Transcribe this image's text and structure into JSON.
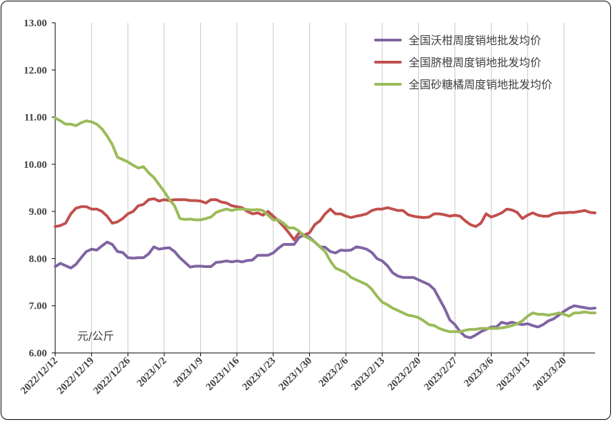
{
  "chart_data": {
    "type": "line",
    "unit_label": "元/公斤",
    "ylim": [
      6.0,
      13.0
    ],
    "y_ticks": [
      "6.00",
      "7.00",
      "8.00",
      "9.00",
      "10.00",
      "11.00",
      "12.00",
      "13.00"
    ],
    "x_ticks": [
      "2022/12/12",
      "2022/12/19",
      "2022/12/26",
      "2023/1/2",
      "2023/1/9",
      "2023/1/16",
      "2023/1/23",
      "2023/1/30",
      "2023/2/6",
      "2023/2/13",
      "2023/2/20",
      "2023/2/27",
      "2023/3/6",
      "2023/3/13",
      "2023/3/20"
    ],
    "x_start": "2022/12/12",
    "x_end": "2023/3/26",
    "grid": true,
    "legend_position": "top-right",
    "series": [
      {
        "name": "全国沃柑周度销地批发均价",
        "color": "#8064A2",
        "x": [
          "2022/12/12",
          "2022/12/13",
          "2022/12/14",
          "2022/12/15",
          "2022/12/16",
          "2022/12/17",
          "2022/12/18",
          "2022/12/19",
          "2022/12/20",
          "2022/12/21",
          "2022/12/22",
          "2022/12/23",
          "2022/12/24",
          "2022/12/25",
          "2022/12/26",
          "2022/12/27",
          "2022/12/28",
          "2022/12/29",
          "2022/12/30",
          "2022/12/31",
          "2023/1/1",
          "2023/1/2",
          "2023/1/3",
          "2023/1/4",
          "2023/1/5",
          "2023/1/6",
          "2023/1/7",
          "2023/1/8",
          "2023/1/9",
          "2023/1/10",
          "2023/1/11",
          "2023/1/12",
          "2023/1/13",
          "2023/1/14",
          "2023/1/15",
          "2023/1/16",
          "2023/1/17",
          "2023/1/18",
          "2023/1/19",
          "2023/1/20",
          "2023/1/21",
          "2023/1/22",
          "2023/1/23",
          "2023/1/24",
          "2023/1/25",
          "2023/1/26",
          "2023/1/27",
          "2023/1/28",
          "2023/1/29",
          "2023/1/30",
          "2023/1/31",
          "2023/2/1",
          "2023/2/2",
          "2023/2/3",
          "2023/2/4",
          "2023/2/5",
          "2023/2/6",
          "2023/2/7",
          "2023/2/8",
          "2023/2/9",
          "2023/2/10",
          "2023/2/11",
          "2023/2/12",
          "2023/2/13",
          "2023/2/14",
          "2023/2/15",
          "2023/2/16",
          "2023/2/17",
          "2023/2/18",
          "2023/2/19",
          "2023/2/20",
          "2023/2/21",
          "2023/2/22",
          "2023/2/23",
          "2023/2/24",
          "2023/2/25",
          "2023/2/26",
          "2023/2/27",
          "2023/2/28",
          "2023/3/1",
          "2023/3/2",
          "2023/3/3",
          "2023/3/4",
          "2023/3/5",
          "2023/3/6",
          "2023/3/7",
          "2023/3/8",
          "2023/3/9",
          "2023/3/10",
          "2023/3/11",
          "2023/3/12",
          "2023/3/13",
          "2023/3/14",
          "2023/3/15",
          "2023/3/16",
          "2023/3/17",
          "2023/3/18",
          "2023/3/19",
          "2023/3/20",
          "2023/3/21",
          "2023/3/22",
          "2023/3/23",
          "2023/3/24",
          "2023/3/25",
          "2023/3/26"
        ],
        "values": [
          7.83,
          7.9,
          7.85,
          7.8,
          7.88,
          8.02,
          8.15,
          8.2,
          8.18,
          8.27,
          8.35,
          8.3,
          8.15,
          8.13,
          8.02,
          8.01,
          8.02,
          8.02,
          8.1,
          8.25,
          8.2,
          8.22,
          8.23,
          8.15,
          8.02,
          7.92,
          7.82,
          7.84,
          7.84,
          7.83,
          7.83,
          7.92,
          7.93,
          7.95,
          7.93,
          7.95,
          7.93,
          7.96,
          7.97,
          8.07,
          8.07,
          8.07,
          8.12,
          8.22,
          8.3,
          8.3,
          8.3,
          8.45,
          8.5,
          8.45,
          8.35,
          8.25,
          8.24,
          8.15,
          8.12,
          8.18,
          8.17,
          8.18,
          8.25,
          8.23,
          8.2,
          8.13,
          8.0,
          7.95,
          7.85,
          7.7,
          7.63,
          7.6,
          7.6,
          7.6,
          7.55,
          7.5,
          7.45,
          7.35,
          7.15,
          6.95,
          6.7,
          6.6,
          6.45,
          6.35,
          6.32,
          6.38,
          6.45,
          6.5,
          6.55,
          6.55,
          6.65,
          6.62,
          6.65,
          6.62,
          6.6,
          6.62,
          6.58,
          6.55,
          6.6,
          6.68,
          6.72,
          6.8,
          6.88,
          6.95,
          7.0,
          6.98,
          6.96,
          6.94,
          6.95
        ]
      },
      {
        "name": "全国脐橙周度销地批发均价",
        "color": "#C0504D",
        "x": [
          "2022/12/12",
          "2022/12/13",
          "2022/12/14",
          "2022/12/15",
          "2022/12/16",
          "2022/12/17",
          "2022/12/18",
          "2022/12/19",
          "2022/12/20",
          "2022/12/21",
          "2022/12/22",
          "2022/12/23",
          "2022/12/24",
          "2022/12/25",
          "2022/12/26",
          "2022/12/27",
          "2022/12/28",
          "2022/12/29",
          "2022/12/30",
          "2022/12/31",
          "2023/1/1",
          "2023/1/2",
          "2023/1/3",
          "2023/1/4",
          "2023/1/5",
          "2023/1/6",
          "2023/1/7",
          "2023/1/8",
          "2023/1/9",
          "2023/1/10",
          "2023/1/11",
          "2023/1/12",
          "2023/1/13",
          "2023/1/14",
          "2023/1/15",
          "2023/1/16",
          "2023/1/17",
          "2023/1/18",
          "2023/1/19",
          "2023/1/20",
          "2023/1/21",
          "2023/1/22",
          "2023/1/23",
          "2023/1/24",
          "2023/1/25",
          "2023/1/26",
          "2023/1/27",
          "2023/1/28",
          "2023/1/29",
          "2023/1/30",
          "2023/1/31",
          "2023/2/1",
          "2023/2/2",
          "2023/2/3",
          "2023/2/4",
          "2023/2/5",
          "2023/2/6",
          "2023/2/7",
          "2023/2/8",
          "2023/2/9",
          "2023/2/10",
          "2023/2/11",
          "2023/2/12",
          "2023/2/13",
          "2023/2/14",
          "2023/2/15",
          "2023/2/16",
          "2023/2/17",
          "2023/2/18",
          "2023/2/19",
          "2023/2/20",
          "2023/2/21",
          "2023/2/22",
          "2023/2/23",
          "2023/2/24",
          "2023/2/25",
          "2023/2/26",
          "2023/2/27",
          "2023/2/28",
          "2023/3/1",
          "2023/3/2",
          "2023/3/3",
          "2023/3/4",
          "2023/3/5",
          "2023/3/6",
          "2023/3/7",
          "2023/3/8",
          "2023/3/9",
          "2023/3/10",
          "2023/3/11",
          "2023/3/12",
          "2023/3/13",
          "2023/3/14",
          "2023/3/15",
          "2023/3/16",
          "2023/3/17",
          "2023/3/18",
          "2023/3/19",
          "2023/3/20",
          "2023/3/21",
          "2023/3/22",
          "2023/3/23",
          "2023/3/24",
          "2023/3/25",
          "2023/3/26"
        ],
        "values": [
          8.68,
          8.7,
          8.75,
          8.95,
          9.07,
          9.1,
          9.1,
          9.05,
          9.05,
          9.0,
          8.9,
          8.75,
          8.78,
          8.85,
          8.95,
          9.0,
          9.12,
          9.15,
          9.25,
          9.27,
          9.22,
          9.25,
          9.23,
          9.25,
          9.25,
          9.25,
          9.23,
          9.23,
          9.22,
          9.18,
          9.25,
          9.25,
          9.2,
          9.18,
          9.12,
          9.1,
          9.08,
          9.0,
          8.95,
          8.97,
          8.92,
          9.0,
          8.9,
          8.8,
          8.68,
          8.55,
          8.4,
          8.55,
          8.5,
          8.55,
          8.72,
          8.8,
          8.95,
          9.05,
          8.95,
          8.95,
          8.9,
          8.87,
          8.9,
          8.92,
          8.95,
          9.02,
          9.05,
          9.05,
          9.08,
          9.05,
          9.02,
          9.02,
          8.93,
          8.9,
          8.88,
          8.87,
          8.88,
          8.95,
          8.95,
          8.93,
          8.9,
          8.92,
          8.9,
          8.8,
          8.72,
          8.68,
          8.75,
          8.95,
          8.88,
          8.92,
          8.97,
          9.05,
          9.03,
          8.98,
          8.85,
          8.92,
          8.97,
          8.92,
          8.9,
          8.9,
          8.95,
          8.97,
          8.97,
          8.98,
          8.98,
          9.0,
          9.02,
          8.98,
          8.97
        ]
      },
      {
        "name": "全国砂糖橘周度销地批发均价",
        "color": "#9BBB59",
        "x": [
          "2022/12/12",
          "2022/12/13",
          "2022/12/14",
          "2022/12/15",
          "2022/12/16",
          "2022/12/17",
          "2022/12/18",
          "2022/12/19",
          "2022/12/20",
          "2022/12/21",
          "2022/12/22",
          "2022/12/23",
          "2022/12/24",
          "2022/12/25",
          "2022/12/26",
          "2022/12/27",
          "2022/12/28",
          "2022/12/29",
          "2022/12/30",
          "2022/12/31",
          "2023/1/1",
          "2023/1/2",
          "2023/1/3",
          "2023/1/4",
          "2023/1/5",
          "2023/1/6",
          "2023/1/7",
          "2023/1/8",
          "2023/1/9",
          "2023/1/10",
          "2023/1/11",
          "2023/1/12",
          "2023/1/13",
          "2023/1/14",
          "2023/1/15",
          "2023/1/16",
          "2023/1/17",
          "2023/1/18",
          "2023/1/19",
          "2023/1/20",
          "2023/1/21",
          "2023/1/22",
          "2023/1/23",
          "2023/1/24",
          "2023/1/25",
          "2023/1/26",
          "2023/1/27",
          "2023/1/28",
          "2023/1/29",
          "2023/1/30",
          "2023/1/31",
          "2023/2/1",
          "2023/2/2",
          "2023/2/3",
          "2023/2/4",
          "2023/2/5",
          "2023/2/6",
          "2023/2/7",
          "2023/2/8",
          "2023/2/9",
          "2023/2/10",
          "2023/2/11",
          "2023/2/12",
          "2023/2/13",
          "2023/2/14",
          "2023/2/15",
          "2023/2/16",
          "2023/2/17",
          "2023/2/18",
          "2023/2/19",
          "2023/2/20",
          "2023/2/21",
          "2023/2/22",
          "2023/2/23",
          "2023/2/24",
          "2023/2/25",
          "2023/2/26",
          "2023/2/27",
          "2023/2/28",
          "2023/3/1",
          "2023/3/2",
          "2023/3/3",
          "2023/3/4",
          "2023/3/5",
          "2023/3/6",
          "2023/3/7",
          "2023/3/8",
          "2023/3/9",
          "2023/3/10",
          "2023/3/11",
          "2023/3/12",
          "2023/3/13",
          "2023/3/14",
          "2023/3/15",
          "2023/3/16",
          "2023/3/17",
          "2023/3/18",
          "2023/3/19",
          "2023/3/20",
          "2023/3/21",
          "2023/3/22",
          "2023/3/23",
          "2023/3/24",
          "2023/3/25",
          "2023/3/26"
        ],
        "values": [
          10.98,
          10.92,
          10.85,
          10.85,
          10.82,
          10.88,
          10.92,
          10.9,
          10.85,
          10.75,
          10.6,
          10.42,
          10.15,
          10.1,
          10.05,
          9.98,
          9.92,
          9.95,
          9.82,
          9.72,
          9.57,
          9.42,
          9.25,
          9.12,
          8.85,
          8.83,
          8.84,
          8.82,
          8.82,
          8.85,
          8.88,
          8.98,
          9.02,
          9.05,
          9.02,
          9.05,
          9.05,
          9.04,
          9.03,
          9.04,
          9.02,
          8.92,
          8.82,
          8.82,
          8.75,
          8.65,
          8.65,
          8.58,
          8.48,
          8.42,
          8.35,
          8.25,
          8.15,
          7.95,
          7.8,
          7.75,
          7.7,
          7.6,
          7.55,
          7.5,
          7.45,
          7.35,
          7.2,
          7.08,
          7.02,
          6.95,
          6.9,
          6.85,
          6.8,
          6.78,
          6.75,
          6.68,
          6.6,
          6.58,
          6.52,
          6.48,
          6.45,
          6.45,
          6.45,
          6.48,
          6.5,
          6.5,
          6.52,
          6.52,
          6.52,
          6.52,
          6.53,
          6.55,
          6.58,
          6.62,
          6.68,
          6.78,
          6.85,
          6.82,
          6.82,
          6.8,
          6.82,
          6.85,
          6.82,
          6.78,
          6.85,
          6.85,
          6.87,
          6.85,
          6.85
        ]
      }
    ]
  }
}
